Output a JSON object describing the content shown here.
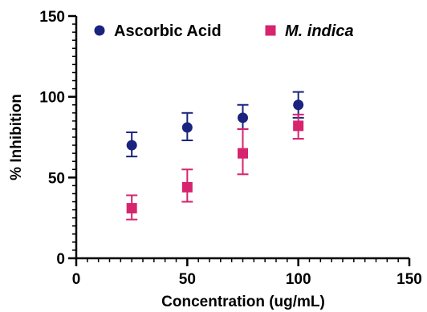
{
  "chart_data": {
    "type": "scatter",
    "xlabel": "Concentration (ug/mL)",
    "ylabel": "% Inhibition",
    "xlim": [
      0,
      150
    ],
    "ylim": [
      0,
      150
    ],
    "x_ticks": [
      0,
      50,
      100,
      150
    ],
    "y_ticks": [
      0,
      50,
      100,
      150
    ],
    "x_tick_labels": [
      "0",
      "50",
      "100",
      "150"
    ],
    "y_tick_labels": [
      "0",
      "50",
      "100",
      "150"
    ],
    "minor_ticks": true,
    "grid": false,
    "legend_placement": "top",
    "series": [
      {
        "name": "Ascorbic Acid",
        "marker": "circle",
        "color": "#1a237e",
        "points": [
          {
            "x": 25,
            "y": 70,
            "err_lo": 7,
            "err_hi": 8
          },
          {
            "x": 50,
            "y": 81,
            "err_lo": 8,
            "err_hi": 9
          },
          {
            "x": 75,
            "y": 87,
            "err_lo": 7,
            "err_hi": 8
          },
          {
            "x": 100,
            "y": 95,
            "err_lo": 8,
            "err_hi": 8
          }
        ]
      },
      {
        "name": "M. indica",
        "marker": "square",
        "color": "#d6246e",
        "points": [
          {
            "x": 25,
            "y": 31,
            "err_lo": 7,
            "err_hi": 8
          },
          {
            "x": 50,
            "y": 44,
            "err_lo": 9,
            "err_hi": 11
          },
          {
            "x": 75,
            "y": 65,
            "err_lo": 13,
            "err_hi": 15
          },
          {
            "x": 100,
            "y": 82,
            "err_lo": 8,
            "err_hi": 7
          }
        ]
      }
    ]
  }
}
